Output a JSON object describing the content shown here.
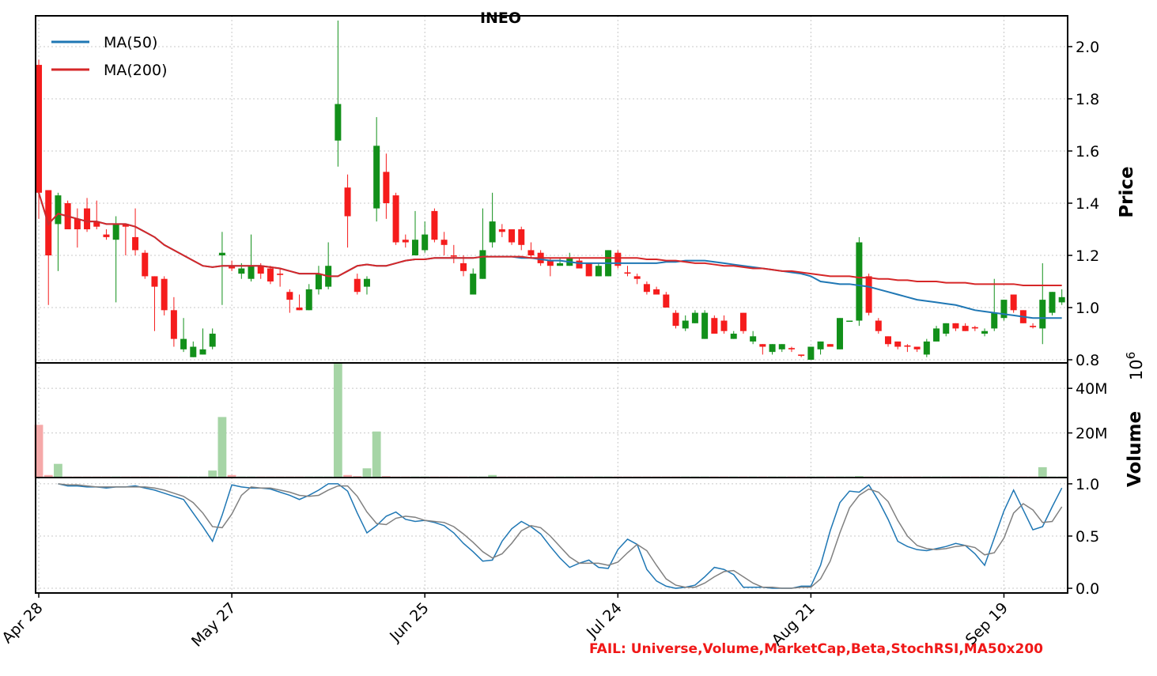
{
  "chart_data": [
    {
      "type": "candlestick",
      "title": "INEO",
      "ylabel": "Price",
      "up_color": "#12901a",
      "down_color": "#f51c1c",
      "ylim": [
        0.788,
        2.118
      ],
      "yticks": [
        0.8,
        {
          "value": 1.0,
          "label": "1.0"
        },
        1.2,
        1.4,
        1.6,
        1.8,
        {
          "value": 2.0,
          "label": "2.0"
        }
      ],
      "grid": true,
      "legend": "upper left",
      "open": [
        1.93,
        1.45,
        1.32,
        1.4,
        1.34,
        1.38,
        1.33,
        1.28,
        1.26,
        1.32,
        1.27,
        1.21,
        1.12,
        1.11,
        0.99,
        0.84,
        0.81,
        0.82,
        0.85,
        1.2,
        1.16,
        1.13,
        1.11,
        1.16,
        1.15,
        1.13,
        1.06,
        1.0,
        0.99,
        1.07,
        1.08,
        1.64,
        1.46,
        1.11,
        1.08,
        1.38,
        1.52,
        1.43,
        1.26,
        1.2,
        1.22,
        1.37,
        1.26,
        1.2,
        1.17,
        1.05,
        1.11,
        1.25,
        1.3,
        1.3,
        1.3,
        1.22,
        1.21,
        1.18,
        1.16,
        1.16,
        1.18,
        1.17,
        1.12,
        1.12,
        1.21,
        1.135,
        1.12,
        1.09,
        1.07,
        1.05,
        0.98,
        0.92,
        0.94,
        0.88,
        0.96,
        0.95,
        0.88,
        0.98,
        0.87,
        0.86,
        0.83,
        0.84,
        0.845,
        0.82,
        0.8,
        0.84,
        0.86,
        0.84,
        0.95,
        0.95,
        1.12,
        0.95,
        0.89,
        0.87,
        0.855,
        0.85,
        0.82,
        0.87,
        0.9,
        0.94,
        0.93,
        0.925,
        0.9,
        0.92,
        0.96,
        1.05,
        0.99,
        0.93,
        0.92,
        0.98,
        1.02
      ],
      "high": [
        1.95,
        1.45,
        1.44,
        1.41,
        1.38,
        1.42,
        1.41,
        1.3,
        1.35,
        1.32,
        1.38,
        1.22,
        1.12,
        1.12,
        1.04,
        0.96,
        0.87,
        0.92,
        0.92,
        1.29,
        1.18,
        1.17,
        1.28,
        1.17,
        1.16,
        1.15,
        1.07,
        1.05,
        1.09,
        1.16,
        1.25,
        2.1,
        1.51,
        1.13,
        1.12,
        1.73,
        1.59,
        1.44,
        1.28,
        1.37,
        1.33,
        1.38,
        1.29,
        1.24,
        1.2,
        1.15,
        1.38,
        1.44,
        1.32,
        1.3,
        1.31,
        1.25,
        1.22,
        1.19,
        1.19,
        1.21,
        1.19,
        1.17,
        1.17,
        1.22,
        1.22,
        1.16,
        1.13,
        1.1,
        1.08,
        1.06,
        0.99,
        0.97,
        0.99,
        0.99,
        0.97,
        0.97,
        0.91,
        0.98,
        0.91,
        0.86,
        0.86,
        0.86,
        0.85,
        0.82,
        0.85,
        0.87,
        0.86,
        0.96,
        0.95,
        1.27,
        1.13,
        0.96,
        0.89,
        0.87,
        0.86,
        0.85,
        0.88,
        0.93,
        0.94,
        0.94,
        0.94,
        0.93,
        0.92,
        1.11,
        1.03,
        1.05,
        0.99,
        0.94,
        1.17,
        1.06,
        1.07
      ],
      "low": [
        1.34,
        1.01,
        1.14,
        1.3,
        1.23,
        1.29,
        1.3,
        1.26,
        1.02,
        1.2,
        1.2,
        1.11,
        0.91,
        0.97,
        0.85,
        0.83,
        0.81,
        0.82,
        0.84,
        1.01,
        1.14,
        1.11,
        1.1,
        1.11,
        1.09,
        1.08,
        0.98,
        0.99,
        0.99,
        1.05,
        1.07,
        1.54,
        1.23,
        1.05,
        1.05,
        1.33,
        1.34,
        1.24,
        1.23,
        1.2,
        1.21,
        1.25,
        1.2,
        1.17,
        1.12,
        1.05,
        1.11,
        1.23,
        1.27,
        1.24,
        1.22,
        1.19,
        1.16,
        1.12,
        1.16,
        1.16,
        1.15,
        1.12,
        1.12,
        1.12,
        1.15,
        1.12,
        1.09,
        1.05,
        1.05,
        1.0,
        0.92,
        0.91,
        0.94,
        0.88,
        0.9,
        0.9,
        0.88,
        0.9,
        0.86,
        0.82,
        0.82,
        0.83,
        0.83,
        0.81,
        0.8,
        0.82,
        0.85,
        0.84,
        0.95,
        0.93,
        0.97,
        0.9,
        0.85,
        0.84,
        0.83,
        0.83,
        0.81,
        0.87,
        0.89,
        0.91,
        0.91,
        0.91,
        0.89,
        0.91,
        0.95,
        0.98,
        0.94,
        0.92,
        0.86,
        0.97,
        1.01
      ],
      "close": [
        1.44,
        1.2,
        1.43,
        1.3,
        1.3,
        1.3,
        1.31,
        1.27,
        1.32,
        1.31,
        1.22,
        1.12,
        1.08,
        0.99,
        0.88,
        0.88,
        0.85,
        0.84,
        0.9,
        1.21,
        1.15,
        1.15,
        1.16,
        1.13,
        1.1,
        1.125,
        1.03,
        0.99,
        1.07,
        1.13,
        1.16,
        1.78,
        1.35,
        1.06,
        1.11,
        1.62,
        1.4,
        1.25,
        1.25,
        1.26,
        1.28,
        1.26,
        1.24,
        1.195,
        1.14,
        1.13,
        1.22,
        1.33,
        1.29,
        1.25,
        1.24,
        1.2,
        1.17,
        1.16,
        1.17,
        1.19,
        1.15,
        1.12,
        1.16,
        1.22,
        1.16,
        1.13,
        1.11,
        1.06,
        1.05,
        1.0,
        0.93,
        0.95,
        0.98,
        0.98,
        0.9,
        0.91,
        0.9,
        0.91,
        0.89,
        0.85,
        0.86,
        0.86,
        0.84,
        0.815,
        0.85,
        0.87,
        0.85,
        0.96,
        0.95,
        1.25,
        0.98,
        0.91,
        0.86,
        0.85,
        0.85,
        0.84,
        0.87,
        0.92,
        0.94,
        0.92,
        0.91,
        0.92,
        0.91,
        0.98,
        1.03,
        0.99,
        0.94,
        0.925,
        1.03,
        1.06,
        1.04
      ],
      "series": [
        {
          "name": "MA(50)",
          "color": "#1f77b4",
          "values": [
            1.44,
            1.32,
            1.36,
            1.35,
            1.34,
            1.33,
            1.33,
            1.32,
            1.32,
            1.32,
            1.31,
            1.29,
            1.27,
            1.24,
            1.22,
            1.2,
            1.18,
            1.16,
            1.155,
            1.16,
            1.16,
            1.16,
            1.16,
            1.16,
            1.155,
            1.15,
            1.14,
            1.13,
            1.13,
            1.13,
            1.12,
            1.12,
            1.14,
            1.16,
            1.165,
            1.16,
            1.16,
            1.17,
            1.18,
            1.185,
            1.185,
            1.19,
            1.19,
            1.19,
            1.19,
            1.19,
            1.195,
            1.195,
            1.195,
            1.195,
            1.19,
            1.19,
            1.185,
            1.18,
            1.18,
            1.175,
            1.17,
            1.17,
            1.17,
            1.17,
            1.17,
            1.17,
            1.17,
            1.17,
            1.17,
            1.175,
            1.175,
            1.18,
            1.18,
            1.18,
            1.175,
            1.17,
            1.165,
            1.16,
            1.155,
            1.15,
            1.145,
            1.14,
            1.135,
            1.13,
            1.12,
            1.1,
            1.095,
            1.09,
            1.09,
            1.085,
            1.08,
            1.07,
            1.06,
            1.05,
            1.04,
            1.03,
            1.025,
            1.02,
            1.015,
            1.01,
            1.0,
            0.99,
            0.985,
            0.98,
            0.975,
            0.97,
            0.965,
            0.96,
            0.96,
            0.96,
            0.96
          ]
        },
        {
          "name": "MA(200)",
          "color": "#d62728",
          "values": [
            1.44,
            1.32,
            1.36,
            1.35,
            1.34,
            1.33,
            1.33,
            1.32,
            1.32,
            1.32,
            1.31,
            1.29,
            1.27,
            1.24,
            1.22,
            1.2,
            1.18,
            1.16,
            1.155,
            1.16,
            1.16,
            1.16,
            1.16,
            1.16,
            1.155,
            1.15,
            1.14,
            1.13,
            1.13,
            1.13,
            1.12,
            1.12,
            1.14,
            1.16,
            1.165,
            1.16,
            1.16,
            1.17,
            1.18,
            1.185,
            1.185,
            1.19,
            1.19,
            1.19,
            1.19,
            1.19,
            1.195,
            1.195,
            1.195,
            1.195,
            1.195,
            1.19,
            1.19,
            1.19,
            1.19,
            1.19,
            1.19,
            1.19,
            1.19,
            1.19,
            1.19,
            1.19,
            1.19,
            1.185,
            1.185,
            1.18,
            1.18,
            1.175,
            1.17,
            1.17,
            1.165,
            1.16,
            1.16,
            1.155,
            1.15,
            1.15,
            1.145,
            1.14,
            1.14,
            1.135,
            1.13,
            1.125,
            1.12,
            1.12,
            1.12,
            1.115,
            1.115,
            1.11,
            1.11,
            1.105,
            1.105,
            1.1,
            1.1,
            1.1,
            1.095,
            1.095,
            1.095,
            1.09,
            1.09,
            1.09,
            1.09,
            1.09,
            1.085,
            1.085,
            1.085,
            1.085,
            1.085
          ]
        }
      ]
    },
    {
      "type": "bar",
      "ylabel": "Volume",
      "offset_label": {
        "base": "10",
        "exponent": "6"
      },
      "up_color": "#a6d5a6",
      "down_color": "#f6a9a9",
      "ylim": [
        0,
        51.4
      ],
      "yticks": [
        {
          "value": 20,
          "label": "20M"
        },
        {
          "value": 40,
          "label": "40M"
        }
      ],
      "grid": true,
      "values": [
        23.5,
        1,
        6,
        0.3,
        0.3,
        0.3,
        0.3,
        0.3,
        0.3,
        0.3,
        0.3,
        0.3,
        0.3,
        0.3,
        0.3,
        0.3,
        0.3,
        0.3,
        3,
        27,
        1,
        0.3,
        0.3,
        0.3,
        0.3,
        0.3,
        0.3,
        0.3,
        0.3,
        0.3,
        0.3,
        51,
        1,
        0.5,
        4,
        20.5,
        0.5,
        0.3,
        0.3,
        0.3,
        0.3,
        0.3,
        0.3,
        0.3,
        0.3,
        0.3,
        0.3,
        1,
        0.3,
        0.3,
        0.3,
        0.3,
        0.3,
        0.3,
        0.3,
        0.3,
        0.3,
        0.3,
        0.3,
        0.3,
        0.3,
        0.3,
        0.3,
        0.3,
        0.3,
        0.3,
        0.3,
        0.3,
        0.3,
        0.3,
        0.3,
        0.3,
        0.3,
        0.3,
        0.3,
        0.3,
        0.3,
        0.3,
        0.3,
        0.3,
        0.3,
        0.3,
        0.3,
        0.3,
        0.3,
        0.5,
        0.3,
        0.3,
        0.3,
        0.3,
        0.3,
        0.3,
        0.3,
        0.3,
        0.3,
        0.3,
        0.3,
        0.3,
        0.3,
        0.3,
        0.3,
        0.3,
        0.3,
        0.3,
        4.5,
        0.3,
        0.3
      ]
    },
    {
      "type": "line",
      "ylim": [
        -0.045,
        1.06
      ],
      "yticks": [
        {
          "value": 0,
          "label": "0.0"
        },
        0.5,
        {
          "value": 1,
          "label": "1.0"
        }
      ],
      "grid": true,
      "xlim": [
        -0.33,
        106.6
      ],
      "xticks": [
        {
          "value": 0,
          "label": "Apr 28"
        },
        {
          "value": 20,
          "label": "May 27"
        },
        {
          "value": 40,
          "label": "Jun 25"
        },
        {
          "value": 60,
          "label": "Jul 24"
        },
        {
          "value": 80,
          "label": "Aug 21"
        },
        {
          "value": 100,
          "label": "Sep 19"
        }
      ],
      "series": [
        {
          "color": "#1f77b4",
          "values": [
            null,
            null,
            1.0,
            0.98,
            0.98,
            0.97,
            0.97,
            0.96,
            0.97,
            0.97,
            0.98,
            0.96,
            0.94,
            0.91,
            0.88,
            0.85,
            0.72,
            0.59,
            0.45,
            0.7,
            0.99,
            0.97,
            0.96,
            0.96,
            0.95,
            0.92,
            0.89,
            0.85,
            0.89,
            0.94,
            1.0,
            1.0,
            0.93,
            0.72,
            0.53,
            0.6,
            0.69,
            0.73,
            0.66,
            0.64,
            0.65,
            0.63,
            0.6,
            0.53,
            0.43,
            0.35,
            0.26,
            0.27,
            0.45,
            0.57,
            0.64,
            0.59,
            0.52,
            0.4,
            0.29,
            0.2,
            0.24,
            0.27,
            0.2,
            0.19,
            0.37,
            0.47,
            0.42,
            0.18,
            0.07,
            0.02,
            0,
            0.01,
            0.03,
            0.11,
            0.2,
            0.18,
            0.13,
            0.01,
            0.01,
            0.01,
            0,
            0,
            0,
            0.02,
            0.02,
            0.22,
            0.55,
            0.82,
            0.93,
            0.92,
            0.99,
            0.84,
            0.66,
            0.45,
            0.4,
            0.37,
            0.36,
            0.38,
            0.4,
            0.43,
            0.41,
            0.33,
            0.22,
            0.48,
            0.74,
            0.94,
            0.75,
            0.56,
            0.59,
            0.78,
            0.96
          ]
        },
        {
          "color": "#808080",
          "values": [
            null,
            null,
            1.0,
            0.99,
            0.99,
            0.98,
            0.97,
            0.97,
            0.97,
            0.97,
            0.97,
            0.97,
            0.96,
            0.94,
            0.91,
            0.88,
            0.82,
            0.72,
            0.59,
            0.58,
            0.71,
            0.89,
            0.97,
            0.96,
            0.96,
            0.94,
            0.92,
            0.89,
            0.88,
            0.89,
            0.94,
            0.98,
            0.98,
            0.88,
            0.73,
            0.62,
            0.61,
            0.67,
            0.69,
            0.68,
            0.65,
            0.64,
            0.63,
            0.59,
            0.52,
            0.44,
            0.35,
            0.29,
            0.33,
            0.43,
            0.55,
            0.6,
            0.58,
            0.5,
            0.4,
            0.3,
            0.24,
            0.24,
            0.24,
            0.22,
            0.25,
            0.34,
            0.42,
            0.36,
            0.22,
            0.09,
            0.03,
            0.01,
            0.01,
            0.05,
            0.11,
            0.16,
            0.17,
            0.11,
            0.05,
            0.01,
            0.01,
            0,
            0,
            0.01,
            0.01,
            0.09,
            0.26,
            0.53,
            0.77,
            0.89,
            0.95,
            0.92,
            0.83,
            0.65,
            0.5,
            0.41,
            0.38,
            0.37,
            0.38,
            0.4,
            0.41,
            0.39,
            0.32,
            0.34,
            0.48,
            0.72,
            0.81,
            0.75,
            0.63,
            0.64,
            0.78
          ]
        }
      ]
    }
  ],
  "annotation": "FAIL: Universe,Volume,MarketCap,Beta,StochRSI,MA50x200"
}
